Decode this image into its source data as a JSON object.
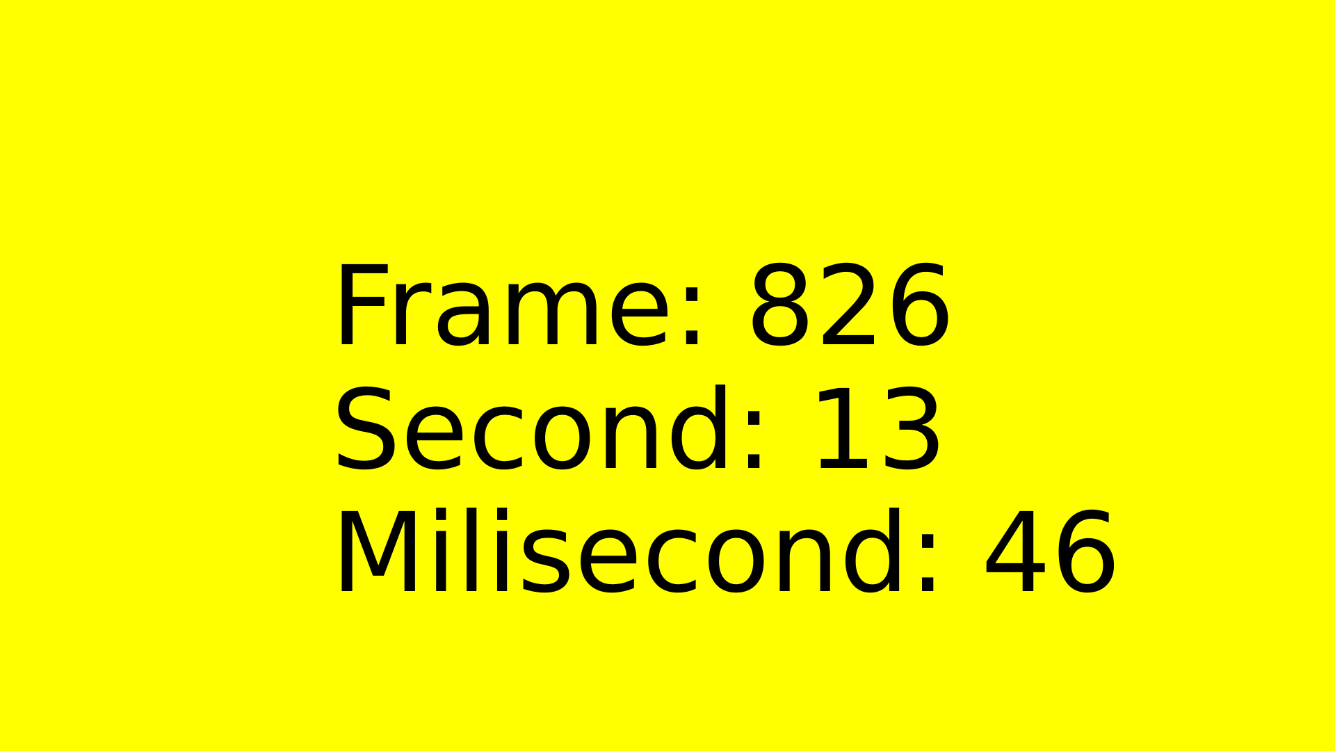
{
  "colors": {
    "background": "#ffff00",
    "text": "#000000"
  },
  "lines": [
    {
      "label": "Frame:",
      "value": "826"
    },
    {
      "label": "Second:",
      "value": "13"
    },
    {
      "label": "Milisecond:",
      "value": "46"
    }
  ]
}
